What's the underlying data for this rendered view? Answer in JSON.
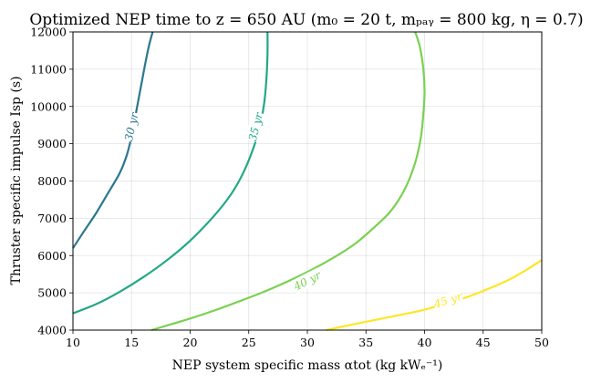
{
  "chart_data": {
    "type": "line",
    "title": "Optimized NEP time to z = 650 AU (m₀ = 20 t, mₚₐᵧ = 800 kg, η = 0.7)",
    "xlabel": "NEP system specific mass αtot (kg kWₑ⁻¹)",
    "ylabel": "Thruster specific impulse Isp (s)",
    "xlim": [
      10,
      50
    ],
    "ylim": [
      4000,
      12000
    ],
    "grid": true,
    "xticks": [
      10,
      15,
      20,
      25,
      30,
      35,
      40,
      45,
      50
    ],
    "yticks": [
      4000,
      5000,
      6000,
      7000,
      8000,
      9000,
      10000,
      11000,
      12000
    ],
    "series": [
      {
        "name": "30 yr",
        "label": "30 yr",
        "color": "#2a788e",
        "label_at": {
          "x": 15.0,
          "y": 9450
        },
        "x": [
          10.0,
          11.0,
          12.0,
          13.0,
          14.0,
          14.6,
          15.0,
          15.3,
          15.6,
          15.9,
          16.2,
          16.5,
          16.8
        ],
        "y": [
          6200,
          6680,
          7150,
          7680,
          8220,
          8700,
          9200,
          9700,
          10200,
          10700,
          11200,
          11650,
          12000
        ]
      },
      {
        "name": "35 yr",
        "label": "35 yr",
        "color": "#22a884",
        "label_at": {
          "x": 25.6,
          "y": 9450
        },
        "x": [
          10.0,
          12.0,
          14.0,
          16.0,
          18.0,
          20.0,
          22.0,
          23.5,
          24.5,
          25.3,
          25.9,
          26.3,
          26.5,
          26.6,
          26.6
        ],
        "y": [
          4450,
          4700,
          5030,
          5420,
          5870,
          6400,
          7050,
          7650,
          8200,
          8800,
          9400,
          10050,
          10700,
          11400,
          12000
        ]
      },
      {
        "name": "40 yr",
        "label": "40 yr",
        "color": "#7ad151",
        "label_at": {
          "x": 30.0,
          "y": 5320
        },
        "x": [
          16.7,
          18.0,
          20.0,
          22.0,
          24.0,
          26.0,
          28.0,
          30.0,
          32.0,
          34.0,
          35.5,
          37.0,
          38.0,
          38.7,
          39.3,
          39.7,
          39.9,
          40.0,
          39.9,
          39.6,
          39.2
        ],
        "y": [
          4000,
          4120,
          4310,
          4520,
          4750,
          4990,
          5260,
          5560,
          5900,
          6300,
          6700,
          7150,
          7600,
          8050,
          8600,
          9200,
          9800,
          10400,
          11000,
          11600,
          12000
        ]
      },
      {
        "name": "45 yr",
        "label": "45 yr",
        "color": "#fde725",
        "label_at": {
          "x": 42.0,
          "y": 4800
        },
        "x": [
          31.6,
          34.0,
          37.0,
          40.0,
          43.0,
          45.0,
          47.0,
          48.5,
          50.0
        ],
        "y": [
          4000,
          4160,
          4350,
          4550,
          4820,
          5050,
          5320,
          5580,
          5880
        ]
      }
    ]
  }
}
